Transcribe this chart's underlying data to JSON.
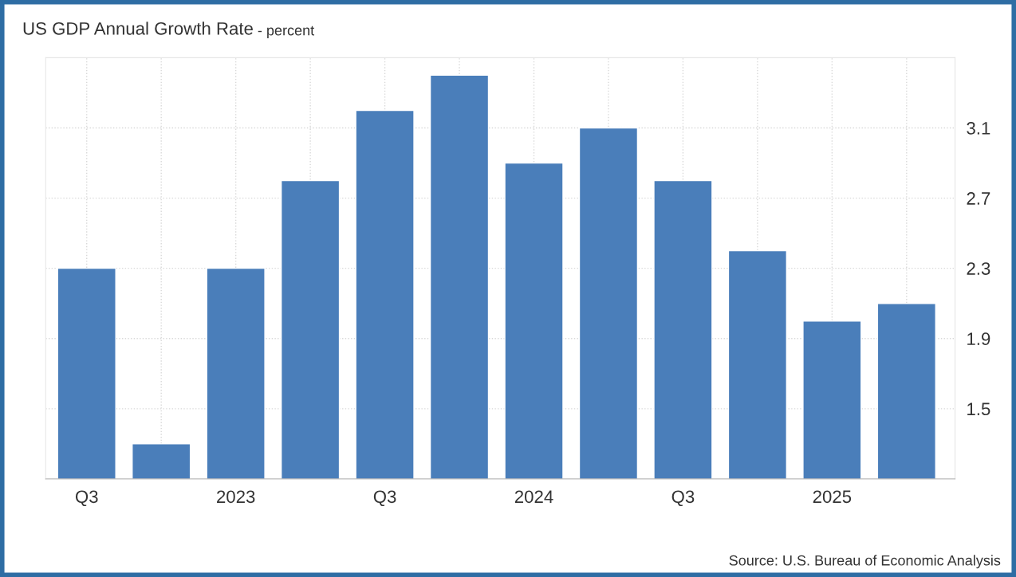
{
  "chart_data": {
    "type": "bar",
    "title": "US GDP Annual Growth Rate",
    "subtitle": "- percent",
    "categories": [
      "Q3",
      null,
      "2023",
      null,
      "Q3",
      null,
      "2024",
      null,
      "Q3",
      null,
      "2025",
      null
    ],
    "values": [
      2.3,
      1.3,
      2.3,
      2.8,
      3.2,
      3.4,
      2.9,
      3.1,
      2.8,
      2.4,
      2.0,
      2.1
    ],
    "color": "#4a7eba",
    "ylim": [
      1.1,
      3.5
    ],
    "yticks": [
      1.5,
      1.9,
      2.3,
      2.7,
      3.1
    ],
    "grid": true,
    "annotations": [
      "Source: U.S. Bureau of Economic Analysis"
    ]
  }
}
